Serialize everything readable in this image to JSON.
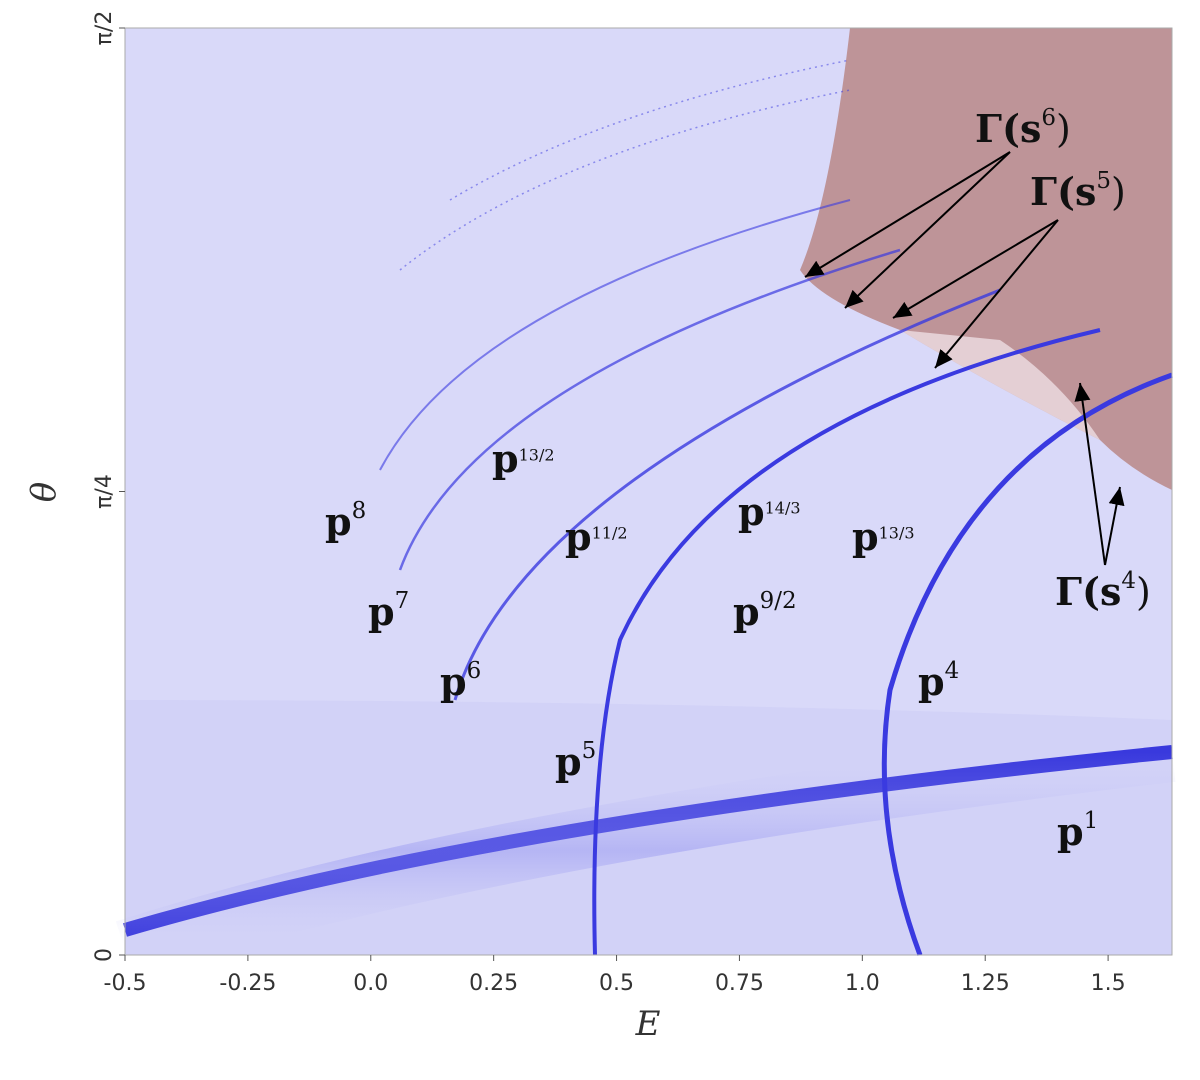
{
  "chart_data": {
    "type": "density",
    "xlabel": "E",
    "ylabel": "θ",
    "xlim": [
      -0.5,
      1.63
    ],
    "ylim": [
      0,
      1.5708
    ],
    "xticks": [
      -0.5,
      -0.25,
      {
        "value": 0,
        "label": "0.0"
      },
      0.25,
      0.5,
      0.75,
      {
        "value": 1,
        "label": "1.0"
      },
      1.25,
      1.5
    ],
    "yticks": [
      0,
      {
        "value": 0.7854,
        "label": "π/4"
      },
      {
        "value": 1.5708,
        "label": "π/2"
      }
    ],
    "annotations": [
      {
        "label": "p",
        "sup": "8"
      },
      {
        "label": "p",
        "sup": "7"
      },
      {
        "label": "p",
        "sup": "6"
      },
      {
        "label": "p",
        "sup": "5"
      },
      {
        "label": "p",
        "sup": "13/2"
      },
      {
        "label": "p",
        "sup": "11/2"
      },
      {
        "label": "p",
        "sup": "14/3"
      },
      {
        "label": "p",
        "sup": "13/3"
      },
      {
        "label": "p",
        "sup": "9/2"
      },
      {
        "label": "p",
        "sup": "4"
      },
      {
        "label": "p",
        "sup": "1"
      },
      {
        "label": "Γ(s",
        "sup": "6",
        "close": ")"
      },
      {
        "label": "Γ(s",
        "sup": "5",
        "close": ")"
      },
      {
        "label": "Γ(s",
        "sup": "4",
        "close": ")"
      }
    ]
  }
}
